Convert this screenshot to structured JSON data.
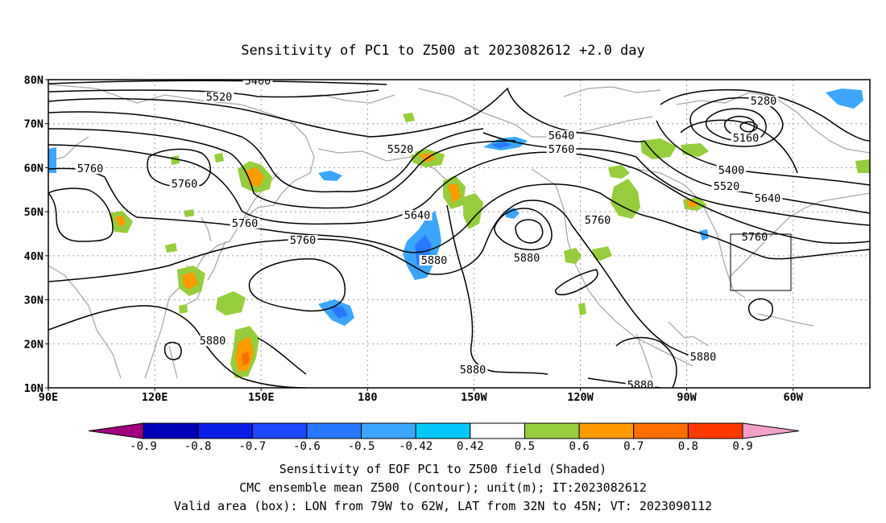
{
  "title": "Sensitivity of PC1 to Z500 at 2023082612 +2.0 day",
  "axes": {
    "lat_labels": [
      "80N",
      "70N",
      "60N",
      "50N",
      "40N",
      "30N",
      "20N",
      "10N"
    ],
    "lon_labels": [
      "90E",
      "120E",
      "150E",
      "180",
      "150W",
      "120W",
      "90W",
      "60W"
    ]
  },
  "contour_labels": [
    "5400",
    "5520",
    "5520",
    "5280",
    "5160",
    "5640",
    "5760",
    "5640",
    "5400",
    "5520",
    "5640",
    "5760",
    "5760",
    "5760",
    "5880",
    "5880",
    "5760",
    "5760",
    "5760",
    "5880",
    "5880",
    "5880",
    "5880"
  ],
  "colorbar": {
    "ticks": [
      "-0.9",
      "-0.8",
      "-0.7",
      "-0.6",
      "-0.5",
      "-0.42",
      "0.42",
      "0.5",
      "0.6",
      "0.7",
      "0.8",
      "0.9"
    ],
    "colors": [
      "#a0007e",
      "#0000b8",
      "#0a1ee6",
      "#1e46ff",
      "#2878ff",
      "#3ca6ff",
      "#00c8f8",
      "#ffffff",
      "#96cd3c",
      "#ff9b00",
      "#ff6e00",
      "#ff3a00",
      "#ff0000",
      "#f5a0c8"
    ]
  },
  "captions": {
    "line1": "Sensitivity of EOF PC1 to Z500 field (Shaded)",
    "line2": "CMC ensemble mean Z500 (Contour); unit(m); IT:2023082612",
    "line3": "Valid area (box): LON from 79W to 62W, LAT from 32N to 45N; VT: 2023090112"
  }
}
